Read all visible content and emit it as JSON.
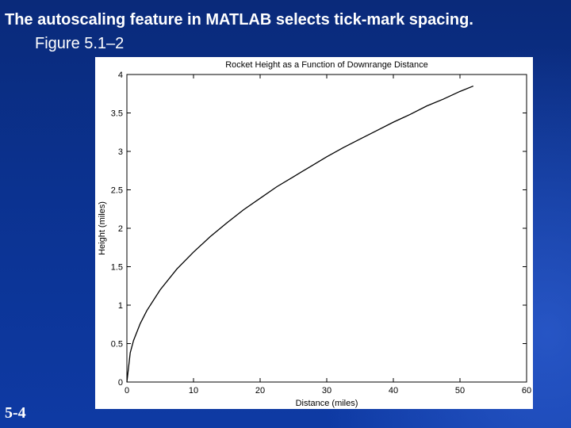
{
  "slide": {
    "title": "The autoscaling feature in MATLAB selects tick-mark spacing.",
    "subtitle": "Figure 5.1–2",
    "number": "5-4"
  },
  "colors": {
    "background": "#0b3290",
    "figure_background": "#ffffff",
    "line": "#000000"
  },
  "chart_data": {
    "type": "line",
    "title": "Rocket Height as a Function of Downrange Distance",
    "xlabel": "Distance (miles)",
    "ylabel": "Height (miles)",
    "xlim": [
      0,
      60
    ],
    "ylim": [
      0,
      4
    ],
    "xticks": [
      0,
      10,
      20,
      30,
      40,
      50,
      60
    ],
    "xtick_labels": [
      "0",
      "10",
      "20",
      "30",
      "40",
      "50",
      "60"
    ],
    "yticks": [
      0,
      0.5,
      1,
      1.5,
      2,
      2.5,
      3,
      3.5,
      4
    ],
    "ytick_labels": [
      "0",
      "0.5",
      "1",
      "1.5",
      "2",
      "2.5",
      "3",
      "3.5",
      "4"
    ],
    "grid": false,
    "series": [
      {
        "x": [
          0,
          0.5,
          1,
          2,
          3,
          5,
          7.5,
          10,
          12.5,
          15,
          17.5,
          20,
          22.5,
          25,
          27.5,
          30,
          32.5,
          35,
          37.5,
          40,
          42.5,
          45,
          47.5,
          50,
          52
        ],
        "y": [
          0,
          0.38,
          0.54,
          0.76,
          0.93,
          1.2,
          1.47,
          1.69,
          1.89,
          2.07,
          2.24,
          2.39,
          2.54,
          2.67,
          2.8,
          2.93,
          3.05,
          3.16,
          3.27,
          3.38,
          3.48,
          3.59,
          3.68,
          3.78,
          3.85
        ]
      }
    ]
  }
}
